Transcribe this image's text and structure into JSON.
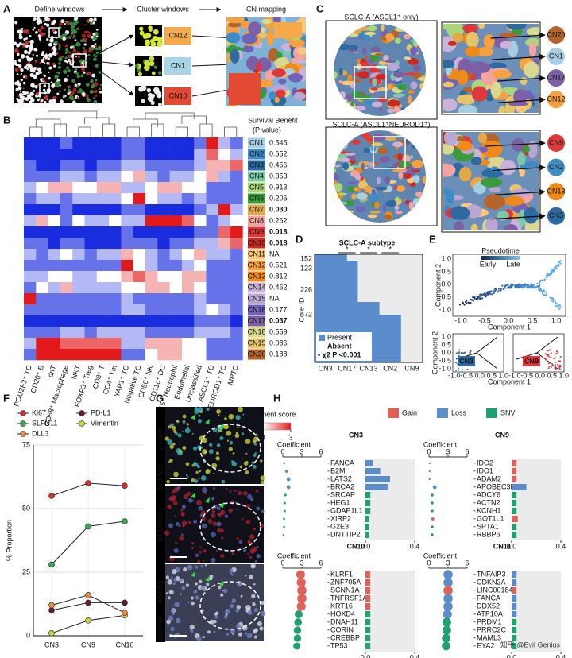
{
  "panel_labels": [
    "A",
    "B",
    "C",
    "D",
    "E",
    "F",
    "G",
    "H"
  ],
  "a": {
    "steps": [
      "Define windows",
      "Cluster windows",
      "CN mapping"
    ],
    "clusters": [
      {
        "label": "CN12",
        "color": "#f5a94a"
      },
      {
        "label": "CN1",
        "color": "#a9d4e6"
      },
      {
        "label": "CN10",
        "color": "#e34a33"
      }
    ]
  },
  "b": {
    "survival_title": "Survival Benefit",
    "survival_subtitle": "(P value)",
    "legend_title": "CN enrichment score",
    "scale_lim": [
      -3,
      3
    ],
    "scale_ticks": [
      -3,
      0,
      3
    ],
    "columns": [
      "POU2F3⁺ TC",
      "CD20⁺ B",
      "dnT",
      "CD68⁺ Macrophage",
      "NKT",
      "FOXP3⁺ Treg",
      "CD8⁺ T",
      "CD4⁺ Tm",
      "YAP1⁺ TC",
      "Negative TC",
      "CD56⁺ NK",
      "CD11c⁺ DC",
      "CD15⁺ Neutrophil",
      "Endothelial",
      "Unclassified",
      "ASCL1⁺ TC",
      "NEUROD1⁺ TC",
      "MPTC"
    ],
    "rows": [
      {
        "name": "CN1",
        "color": "#a6cee3",
        "survival": "0.545",
        "survival_color": "#8c8c8c",
        "values": [
          -3,
          -3,
          -3,
          -2,
          -3,
          -3,
          -3,
          -3,
          -2,
          -2,
          -3,
          -3,
          -3,
          -3,
          -2,
          3,
          -1,
          -2
        ]
      },
      {
        "name": "CN2",
        "color": "#3d8cc4",
        "survival": "0.652",
        "survival_color": "#8c8c8c",
        "values": [
          -3,
          -3,
          -3,
          -3,
          -3,
          -3,
          -3,
          -3,
          -2,
          -2,
          -3,
          -3,
          -3,
          -3,
          -1,
          2,
          0,
          -1
        ]
      },
      {
        "name": "CN3",
        "color": "#2d6a9f",
        "survival": "0.456",
        "survival_color": "#8c8c8c",
        "values": [
          -2,
          -3,
          -3,
          -2,
          -2,
          -3,
          -2,
          -2,
          -1,
          -1,
          -2,
          -2,
          -2,
          -2,
          -1,
          1,
          1,
          2
        ]
      },
      {
        "name": "CN4",
        "color": "#7cc8a8",
        "survival": "0.353",
        "survival_color": "#8c8c8c",
        "values": [
          -2,
          -2,
          -2,
          -1,
          -1,
          -2,
          -1,
          -1,
          0,
          1,
          -1,
          -2,
          -1,
          -1,
          0,
          1,
          -1,
          -2
        ]
      },
      {
        "name": "CN5",
        "color": "#a9d67a",
        "survival": "0.913",
        "survival_color": "#8c8c8c",
        "values": [
          -1,
          0,
          1,
          1,
          0,
          0,
          1,
          1,
          -1,
          -1,
          0,
          1,
          1,
          0,
          0,
          -2,
          -2,
          -2
        ]
      },
      {
        "name": "CN6",
        "color": "#3a9b3a",
        "survival": "0.206",
        "survival_color": "#8c8c8c",
        "values": [
          -2,
          -1,
          -1,
          -2,
          -1,
          -1,
          -1,
          -1,
          0,
          3,
          0,
          -1,
          -1,
          -2,
          -1,
          -2,
          -2,
          -2
        ]
      },
      {
        "name": "CN7",
        "color": "#e2a84a",
        "survival": "0.030",
        "survival_color": "#c0282e",
        "values": [
          -3,
          -3,
          -3,
          -2,
          -3,
          -3,
          -3,
          -3,
          -2,
          -2,
          -3,
          -3,
          -3,
          -3,
          -2,
          -1,
          3,
          -1
        ]
      },
      {
        "name": "CN8",
        "color": "#f4a3a0",
        "survival": "0.262",
        "survival_color": "#8c8c8c",
        "values": [
          -1,
          1,
          0,
          -2,
          0,
          -1,
          -1,
          0,
          -1,
          -1,
          3,
          3,
          3,
          2,
          0,
          -2,
          -1,
          0
        ]
      },
      {
        "name": "CN9",
        "color": "#e0383a",
        "survival": "0.018",
        "survival_color": "#c0282e",
        "values": [
          -3,
          -3,
          -3,
          -3,
          -3,
          -3,
          -3,
          -3,
          -2,
          -3,
          -3,
          -3,
          -3,
          -3,
          -2,
          -2,
          2,
          3
        ]
      },
      {
        "name": "CN10",
        "color": "#c92a22",
        "survival": "0.018",
        "survival_color": "#c0282e",
        "values": [
          -2,
          -2,
          -3,
          -2,
          -2,
          -3,
          -3,
          -3,
          -2,
          -2,
          -2,
          -3,
          -2,
          -2,
          -1,
          -1,
          1,
          2
        ]
      },
      {
        "name": "CN11",
        "color": "#fcc77a",
        "survival": "NA",
        "survival_color": "#8c8c8c",
        "values": [
          -1,
          -2,
          -1,
          0,
          -1,
          -2,
          -1,
          -1,
          1,
          0,
          -1,
          -2,
          -1,
          0,
          1,
          -1,
          -1,
          -2
        ]
      },
      {
        "name": "CN12",
        "color": "#f7a040",
        "survival": "0.521",
        "survival_color": "#8c8c8c",
        "values": [
          -2,
          -2,
          -2,
          -2,
          -2,
          -2,
          -2,
          -2,
          3,
          0,
          -1,
          -2,
          -2,
          -1,
          0,
          -2,
          -2,
          -2
        ]
      },
      {
        "name": "CN13",
        "color": "#ee8a1c",
        "survival": "0.812",
        "survival_color": "#8c8c8c",
        "values": [
          -1,
          -1,
          0,
          0,
          -1,
          -1,
          0,
          0,
          1,
          2,
          1,
          0,
          0,
          1,
          1,
          -2,
          -2,
          -2
        ]
      },
      {
        "name": "CN14",
        "color": "#c9b3d8",
        "survival": "0.462",
        "survival_color": "#8c8c8c",
        "values": [
          -2,
          0,
          -1,
          1,
          -1,
          -1,
          -1,
          -1,
          0,
          0,
          1,
          1,
          0,
          1,
          0,
          -2,
          -2,
          -2
        ]
      },
      {
        "name": "CN15",
        "color": "#b9a6d2",
        "survival": "NA",
        "survival_color": "#8c8c8c",
        "values": [
          3,
          -2,
          -2,
          -2,
          -2,
          -2,
          -2,
          -2,
          -1,
          -2,
          -2,
          -2,
          -2,
          -2,
          -1,
          -2,
          -2,
          -2
        ]
      },
      {
        "name": "CN16",
        "color": "#6f62b8",
        "survival": "0.177",
        "survival_color": "#8c8c8c",
        "values": [
          -2,
          -2,
          -2,
          -2,
          -2,
          -2,
          -2,
          -2,
          -1,
          -1,
          -2,
          -2,
          -2,
          -2,
          -1,
          0,
          -1,
          -2
        ]
      },
      {
        "name": "CN17",
        "color": "#7d5fa6",
        "survival": "0.037",
        "survival_color": "#3a6ab0",
        "values": [
          -3,
          -3,
          -3,
          -3,
          -3,
          -3,
          -3,
          -3,
          -3,
          -3,
          -3,
          -3,
          -3,
          -3,
          -2,
          -2,
          -2,
          -3
        ]
      },
      {
        "name": "CN18",
        "color": "#d8d88e",
        "survival": "0.559",
        "survival_color": "#8c8c8c",
        "values": [
          -2,
          -2,
          -2,
          -1,
          -1,
          -2,
          -1,
          -1,
          -1,
          -1,
          -2,
          -2,
          -2,
          -2,
          -1,
          -1,
          -1,
          -2
        ]
      },
      {
        "name": "CN19",
        "color": "#e6c46a",
        "survival": "0.086",
        "survival_color": "#8c8c8c",
        "values": [
          -1,
          3,
          3,
          2,
          2,
          2,
          2,
          2,
          -1,
          -1,
          1,
          1,
          1,
          0,
          0,
          -2,
          -2,
          -2
        ]
      },
      {
        "name": "CN20",
        "color": "#b5652c",
        "survival": "0.188",
        "survival_color": "#8c8c8c",
        "values": [
          -2,
          3,
          3,
          3,
          3,
          3,
          3,
          3,
          -2,
          -2,
          0,
          1,
          1,
          0,
          0,
          -2,
          -2,
          -2
        ]
      }
    ]
  },
  "c": {
    "titles": [
      "SCLC-A (ASCL1⁺ only)",
      "SCLC-A (ASCL1⁺NEUROD1⁺)"
    ],
    "callouts": [
      [
        {
          "label": "CN20",
          "color": "#b5652c"
        },
        {
          "label": "CN1",
          "color": "#a6cee3"
        },
        {
          "label": "CN17",
          "color": "#7d5fa6"
        },
        {
          "label": "CN12",
          "color": "#f7a040"
        }
      ],
      [
        {
          "label": "CN9",
          "color": "#e0383a"
        },
        {
          "label": "CN2",
          "color": "#3d8cc4"
        },
        {
          "label": "CN13",
          "color": "#ee8a1c"
        },
        {
          "label": "CN3",
          "color": "#2d6a9f"
        }
      ]
    ]
  },
  "d": {
    "title": "SCLC-A subtype",
    "ylabel": "Core ID",
    "row_labels": [
      "152",
      "123",
      "226",
      "72"
    ],
    "categories": [
      "CN3",
      "CN17",
      "CN13",
      "CN2",
      "CN9"
    ],
    "legend": [
      "Present",
      "Absent"
    ],
    "stat": "• χ2 P <0.001",
    "stars": [
      "*",
      "*",
      "*"
    ],
    "present_color": "#5b8ccc",
    "absent_color": "#ebebeb"
  },
  "e": {
    "legend_title": "Pseudotime",
    "legend_labels": [
      "Early",
      "Late"
    ],
    "xlabel": "Component 1",
    "ylabel": "Component 2",
    "xticks": [
      "-1.0",
      "-0.5",
      "0.0",
      "0.5",
      "1.0"
    ],
    "yticks": [
      "1.0",
      "0.5",
      "0.0",
      "-0.5",
      "-1.0"
    ],
    "insets": [
      {
        "label": "CN3",
        "color": "#2d6a9f"
      },
      {
        "label": "CN9",
        "color": "#e0383a"
      }
    ],
    "inset_xticks": "-1.0-0.5 0.0 0.5 1.0",
    "inset_yticks": [
      "1.0",
      "0.5",
      "0.0",
      "-0.5",
      "-1.0"
    ]
  },
  "f": {
    "type": "line",
    "ylabel": "% Proportion",
    "categories": [
      "CN3",
      "CN9",
      "CN10"
    ],
    "ylim": [
      0,
      75
    ],
    "yticks": [
      0,
      25,
      50,
      75
    ],
    "grid": true,
    "series": [
      {
        "name": "Ki67",
        "color": "#d0312d",
        "values": [
          55,
          60,
          59
        ]
      },
      {
        "name": "PD-L1",
        "color": "#6b1a2a",
        "values": [
          10,
          13,
          13
        ]
      },
      {
        "name": "SLFN11",
        "color": "#3aa655",
        "values": [
          28,
          43,
          45
        ]
      },
      {
        "name": "Vimentin",
        "color": "#c8d43a",
        "values": [
          1,
          6,
          8
        ]
      },
      {
        "name": "DLL3",
        "color": "#f08a3c",
        "values": [
          12,
          16,
          9
        ]
      }
    ]
  },
  "g": {
    "stains": [
      {
        "label": "panCK",
        "color": "#38d6d6"
      },
      {
        "label": "SLFN11",
        "color": "#f0e040"
      },
      {
        "label": "NEUROD1",
        "color": "#e83030"
      },
      {
        "label": "ASCL1",
        "color": "#ffffff"
      },
      {
        "label": "dsDNA",
        "color": "#6a7fe0"
      }
    ]
  },
  "h": {
    "legend": [
      {
        "name": "Gain",
        "color": "#e0605a"
      },
      {
        "name": "Loss",
        "color": "#5b8ec9"
      },
      {
        "name": "SNV",
        "color": "#23a070"
      }
    ],
    "coef_label": "Coefficient",
    "coef_lim": [
      0,
      6
    ],
    "coef_ticks": [
      0,
      3,
      6
    ],
    "bar_lim": [
      0,
      0.4
    ],
    "bar_ticks": [
      {
        "value": 0,
        "label": "0.0"
      },
      {
        "value": 0.4,
        "label": "0.4"
      }
    ],
    "panels": [
      {
        "title": "CN3",
        "genes": [
          {
            "name": "FANCA",
            "coef": 0.2,
            "type": "Loss",
            "freq": 0.06
          },
          {
            "name": "B2M",
            "coef": 0.6,
            "type": "Loss",
            "freq": 0.12
          },
          {
            "name": "LATS2",
            "coef": 0.9,
            "type": "Loss",
            "freq": 0.2
          },
          {
            "name": "BRCA2",
            "coef": 0.9,
            "type": "Loss",
            "freq": 0.18
          },
          {
            "name": "SRCAP",
            "coef": 0.4,
            "type": "SNV",
            "freq": 0.04
          },
          {
            "name": "HEG1",
            "coef": 0.3,
            "type": "SNV",
            "freq": 0.04
          },
          {
            "name": "GDAP1L1",
            "coef": 0.3,
            "type": "SNV",
            "freq": 0.04
          },
          {
            "name": "XIRP2",
            "coef": 0.2,
            "type": "SNV",
            "freq": 0.03
          },
          {
            "name": "G2E3",
            "coef": 0.2,
            "type": "SNV",
            "freq": 0.03
          },
          {
            "name": "DNTTIP2",
            "coef": 0.1,
            "type": "SNV",
            "freq": 0.03
          }
        ]
      },
      {
        "title": "CN9",
        "genes": [
          {
            "name": "IDO2",
            "coef": 0.1,
            "type": "Gain",
            "freq": 0.04
          },
          {
            "name": "IDO1",
            "coef": 0.1,
            "type": "Gain",
            "freq": 0.04
          },
          {
            "name": "ADAM2",
            "coef": 0.1,
            "type": "Gain",
            "freq": 0.04
          },
          {
            "name": "APOBEC3B",
            "coef": 0.9,
            "type": "Loss",
            "freq": 0.12
          },
          {
            "name": "ADCY6",
            "coef": 0.5,
            "type": "SNV",
            "freq": 0.04
          },
          {
            "name": "ACTN2",
            "coef": 0.5,
            "type": "SNV",
            "freq": 0.04
          },
          {
            "name": "KCNH1",
            "coef": 0.5,
            "type": "SNV",
            "freq": 0.04
          },
          {
            "name": "GOT1L1",
            "coef": 0.6,
            "type": "Gain",
            "freq": 0.05
          },
          {
            "name": "SPTA1",
            "coef": 0.5,
            "type": "SNV",
            "freq": 0.04
          },
          {
            "name": "RBBP6",
            "coef": 0.5,
            "type": "SNV",
            "freq": 0.04
          }
        ]
      },
      {
        "title": "CN10",
        "genes": [
          {
            "name": "KLRF1",
            "coef": 2.8,
            "type": "Gain",
            "freq": 0.04
          },
          {
            "name": "ZNF705A",
            "coef": 2.9,
            "type": "Gain",
            "freq": 0.04
          },
          {
            "name": "SCNN1A",
            "coef": 3,
            "type": "Gain",
            "freq": 0.04
          },
          {
            "name": "TNFRSF1A",
            "coef": 3,
            "type": "Gain",
            "freq": 0.04
          },
          {
            "name": "KRT16",
            "coef": 2.9,
            "type": "Gain",
            "freq": 0.04
          },
          {
            "name": "HOXD4",
            "coef": 2.5,
            "type": "SNV",
            "freq": 0.04
          },
          {
            "name": "DNAH11",
            "coef": 2.4,
            "type": "SNV",
            "freq": 0.04
          },
          {
            "name": "CORIN",
            "coef": 2.3,
            "type": "SNV",
            "freq": 0.04
          },
          {
            "name": "CREBBP",
            "coef": 2.3,
            "type": "SNV",
            "freq": 0.04
          },
          {
            "name": "TP53",
            "coef": 2.2,
            "type": "SNV",
            "freq": 0.04
          }
        ]
      },
      {
        "title": "CN11",
        "genes": [
          {
            "name": "TNFAIP3",
            "coef": 3,
            "type": "Loss",
            "freq": 0.04
          },
          {
            "name": "CDKN2A",
            "coef": 3,
            "type": "Loss",
            "freq": 0.04
          },
          {
            "name": "LINC00184",
            "coef": 3,
            "type": "Gain",
            "freq": 0.04
          },
          {
            "name": "FANCA",
            "coef": 3,
            "type": "Loss",
            "freq": 0.04
          },
          {
            "name": "DDX52",
            "coef": 3,
            "type": "Loss",
            "freq": 0.04
          },
          {
            "name": "ATP10A",
            "coef": 2.9,
            "type": "Loss",
            "freq": 0.04
          },
          {
            "name": "PRDM1",
            "coef": 2.8,
            "type": "SNV",
            "freq": 0.04
          },
          {
            "name": "PRRC2C",
            "coef": 2.8,
            "type": "SNV",
            "freq": 0.04
          },
          {
            "name": "MAML3",
            "coef": 2.7,
            "type": "SNV",
            "freq": 0.04
          },
          {
            "name": "EYA2",
            "coef": 2.7,
            "type": "SNV",
            "freq": 0.04
          }
        ]
      }
    ]
  },
  "watermark": "知乎 @Evil Genius"
}
